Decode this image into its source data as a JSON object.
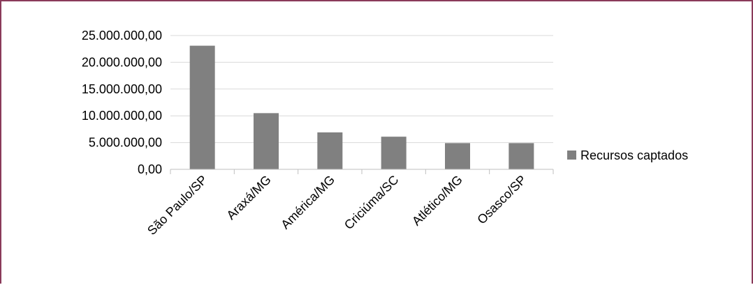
{
  "chart_data": {
    "type": "bar",
    "categories": [
      "São Paulo/SP",
      "Araxá/MG",
      "América/MG",
      "Criciúma/SC",
      "Atlético/MG",
      "Osasco/SP"
    ],
    "series": [
      {
        "name": "Recursos captados",
        "values": [
          23100000,
          10500000,
          6900000,
          6100000,
          4900000,
          4900000
        ]
      }
    ],
    "y_ticks": [
      "0,00",
      "5.000.000,00",
      "10.000.000,00",
      "15.000.000,00",
      "20.000.000,00",
      "25.000.000,00"
    ],
    "ylim": [
      0,
      25000000
    ],
    "grid": true,
    "legend": "right",
    "colors": {
      "bar": "#808080",
      "grid": "#d9d9d9",
      "axis": "#bfbfbf",
      "frame": "#8a3a5a"
    }
  }
}
